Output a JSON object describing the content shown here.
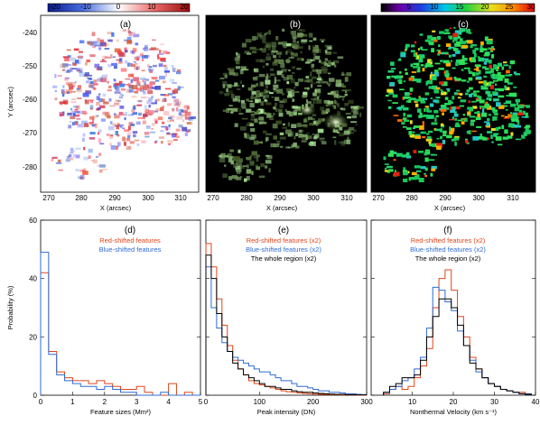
{
  "colors": {
    "red_series": "#e0461b",
    "blue_series": "#2f6bd4",
    "black_series": "#000000",
    "map_background": "#000000",
    "frame": "#000000"
  },
  "image_panels": [
    {
      "label": "(a)",
      "colorbar_ticks": [
        "-20",
        "-10",
        "0",
        "10",
        "20"
      ],
      "colorbar_range": [
        -20,
        20
      ],
      "colorbar_palette": "blue-white-red",
      "ylabel": "Y (arcsec)",
      "xlabel": "X (arcsec)",
      "yticks": [
        "-240",
        "-250",
        "-260",
        "-270",
        "-280"
      ],
      "xticks": [
        "270",
        "280",
        "290",
        "300",
        "310"
      ]
    },
    {
      "label": "(b)",
      "xlabel": "X (arcsec)",
      "xticks": [
        "270",
        "280",
        "290",
        "300",
        "310"
      ],
      "palette": "green-yellow-white on black"
    },
    {
      "label": "(c)",
      "colorbar_ticks": [
        "0",
        "5",
        "10",
        "15",
        "20",
        "25",
        "30"
      ],
      "colorbar_range": [
        0,
        30
      ],
      "colorbar_palette": "rainbow",
      "xlabel": "X (arcsec)",
      "xticks": [
        "270",
        "280",
        "290",
        "300",
        "310"
      ]
    }
  ],
  "chart_data": [
    {
      "type": "line",
      "style": "histogram-step",
      "label": "(d)",
      "xlabel": "Feature sizes (Mm²)",
      "ylabel": "Probability (%)",
      "xlim": [
        0,
        5
      ],
      "ylim": [
        0,
        60
      ],
      "xticks": [
        "0",
        "1",
        "2",
        "3",
        "4",
        "5"
      ],
      "yticks": [
        "0",
        "20",
        "40",
        "60"
      ],
      "bin_width": 0.25,
      "bin_starts": [
        0,
        0.25,
        0.5,
        0.75,
        1.0,
        1.25,
        1.5,
        1.75,
        2.0,
        2.25,
        2.5,
        2.75,
        3.0,
        3.25,
        3.5,
        3.75,
        4.0,
        4.25,
        4.5,
        4.75
      ],
      "series": [
        {
          "name": "Red-shifted features",
          "color": "red",
          "values": [
            42,
            15,
            8,
            6,
            5,
            5,
            4,
            5,
            4,
            3,
            2,
            2,
            3,
            1,
            0,
            0,
            4,
            0,
            1,
            0
          ]
        },
        {
          "name": "Blue-shifted features",
          "color": "blue",
          "values": [
            49,
            14,
            7,
            5,
            4,
            3,
            3,
            2,
            3,
            2,
            1,
            1,
            0,
            0,
            0,
            1,
            0,
            0,
            0,
            0
          ]
        }
      ]
    },
    {
      "type": "line",
      "style": "histogram-step",
      "label": "(e)",
      "xlabel": "Peak intensity (DN)",
      "xlim": [
        0,
        300
      ],
      "ylim": [
        0,
        60
      ],
      "xticks": [
        "0",
        "100",
        "200",
        "300"
      ],
      "bin_width": 10,
      "bin_starts": [
        0,
        10,
        20,
        30,
        40,
        50,
        60,
        70,
        80,
        90,
        100,
        110,
        120,
        130,
        140,
        150,
        160,
        170,
        180,
        190,
        200,
        210,
        220,
        230,
        240,
        250,
        260,
        270,
        280,
        290
      ],
      "series": [
        {
          "name": "Red-shifted features (x2)",
          "color": "red",
          "values": [
            52,
            44,
            33,
            24,
            17,
            12,
            9,
            7,
            5,
            4,
            3.5,
            3,
            2.5,
            2,
            1.5,
            1.2,
            1,
            0.8,
            0.6,
            0.5,
            0.4,
            0.3,
            0.3,
            0.2,
            0.2,
            0.1,
            0.1,
            0.1,
            0,
            0
          ]
        },
        {
          "name": "Blue-shifted features (x2)",
          "color": "blue",
          "values": [
            44,
            30,
            23,
            18,
            15,
            13,
            12,
            11,
            10,
            9,
            8,
            8,
            7,
            6,
            5,
            5,
            4,
            3,
            3,
            2.5,
            2,
            1.5,
            1.5,
            1,
            1,
            0.8,
            0.5,
            0.5,
            0.3,
            0.2
          ]
        },
        {
          "name": "The whole region (x2)",
          "color": "black",
          "values": [
            48,
            40,
            28,
            20,
            15,
            11,
            9,
            7,
            6,
            5,
            4,
            3,
            3,
            2.5,
            2,
            2,
            1.5,
            1.2,
            1,
            1,
            0.8,
            0.6,
            0.5,
            0.4,
            0.3,
            0.3,
            0.2,
            0.2,
            0.1,
            0.1
          ]
        }
      ]
    },
    {
      "type": "line",
      "style": "histogram-step",
      "label": "(f)",
      "xlabel": "Nonthermal Velocity (km s⁻¹)",
      "xlim": [
        0,
        40
      ],
      "ylim": [
        0,
        60
      ],
      "xticks": [
        "10",
        "20",
        "30",
        "40"
      ],
      "bin_width": 1.5,
      "bin_starts": [
        3,
        4.5,
        6,
        7.5,
        9,
        10.5,
        12,
        13.5,
        15,
        16.5,
        18,
        19.5,
        21,
        22.5,
        24,
        25.5,
        27,
        28.5,
        30,
        31.5,
        33,
        34.5,
        36,
        37.5
      ],
      "series": [
        {
          "name": "Red-shifted features (x2)",
          "color": "red",
          "values": [
            0.5,
            2,
            3,
            2,
            3,
            6,
            10,
            16,
            30,
            40,
            43,
            36,
            27,
            20,
            13,
            9,
            6,
            4,
            3,
            2,
            1.5,
            1,
            1,
            0.5
          ]
        },
        {
          "name": "Blue-shifted features (x2)",
          "color": "blue",
          "values": [
            1,
            2,
            3,
            5,
            6,
            9,
            13,
            23,
            37,
            36,
            32,
            29,
            22,
            17,
            12,
            8,
            6,
            4,
            3,
            2,
            1.5,
            1,
            0.5,
            0.5
          ]
        },
        {
          "name": "The whole region (x2)",
          "color": "black",
          "values": [
            1,
            3,
            4,
            6,
            6,
            7,
            12,
            20,
            27,
            33,
            33,
            30,
            24,
            17,
            11,
            9,
            6,
            4,
            3,
            2,
            1.5,
            1,
            0.5,
            0.3
          ]
        }
      ]
    }
  ]
}
